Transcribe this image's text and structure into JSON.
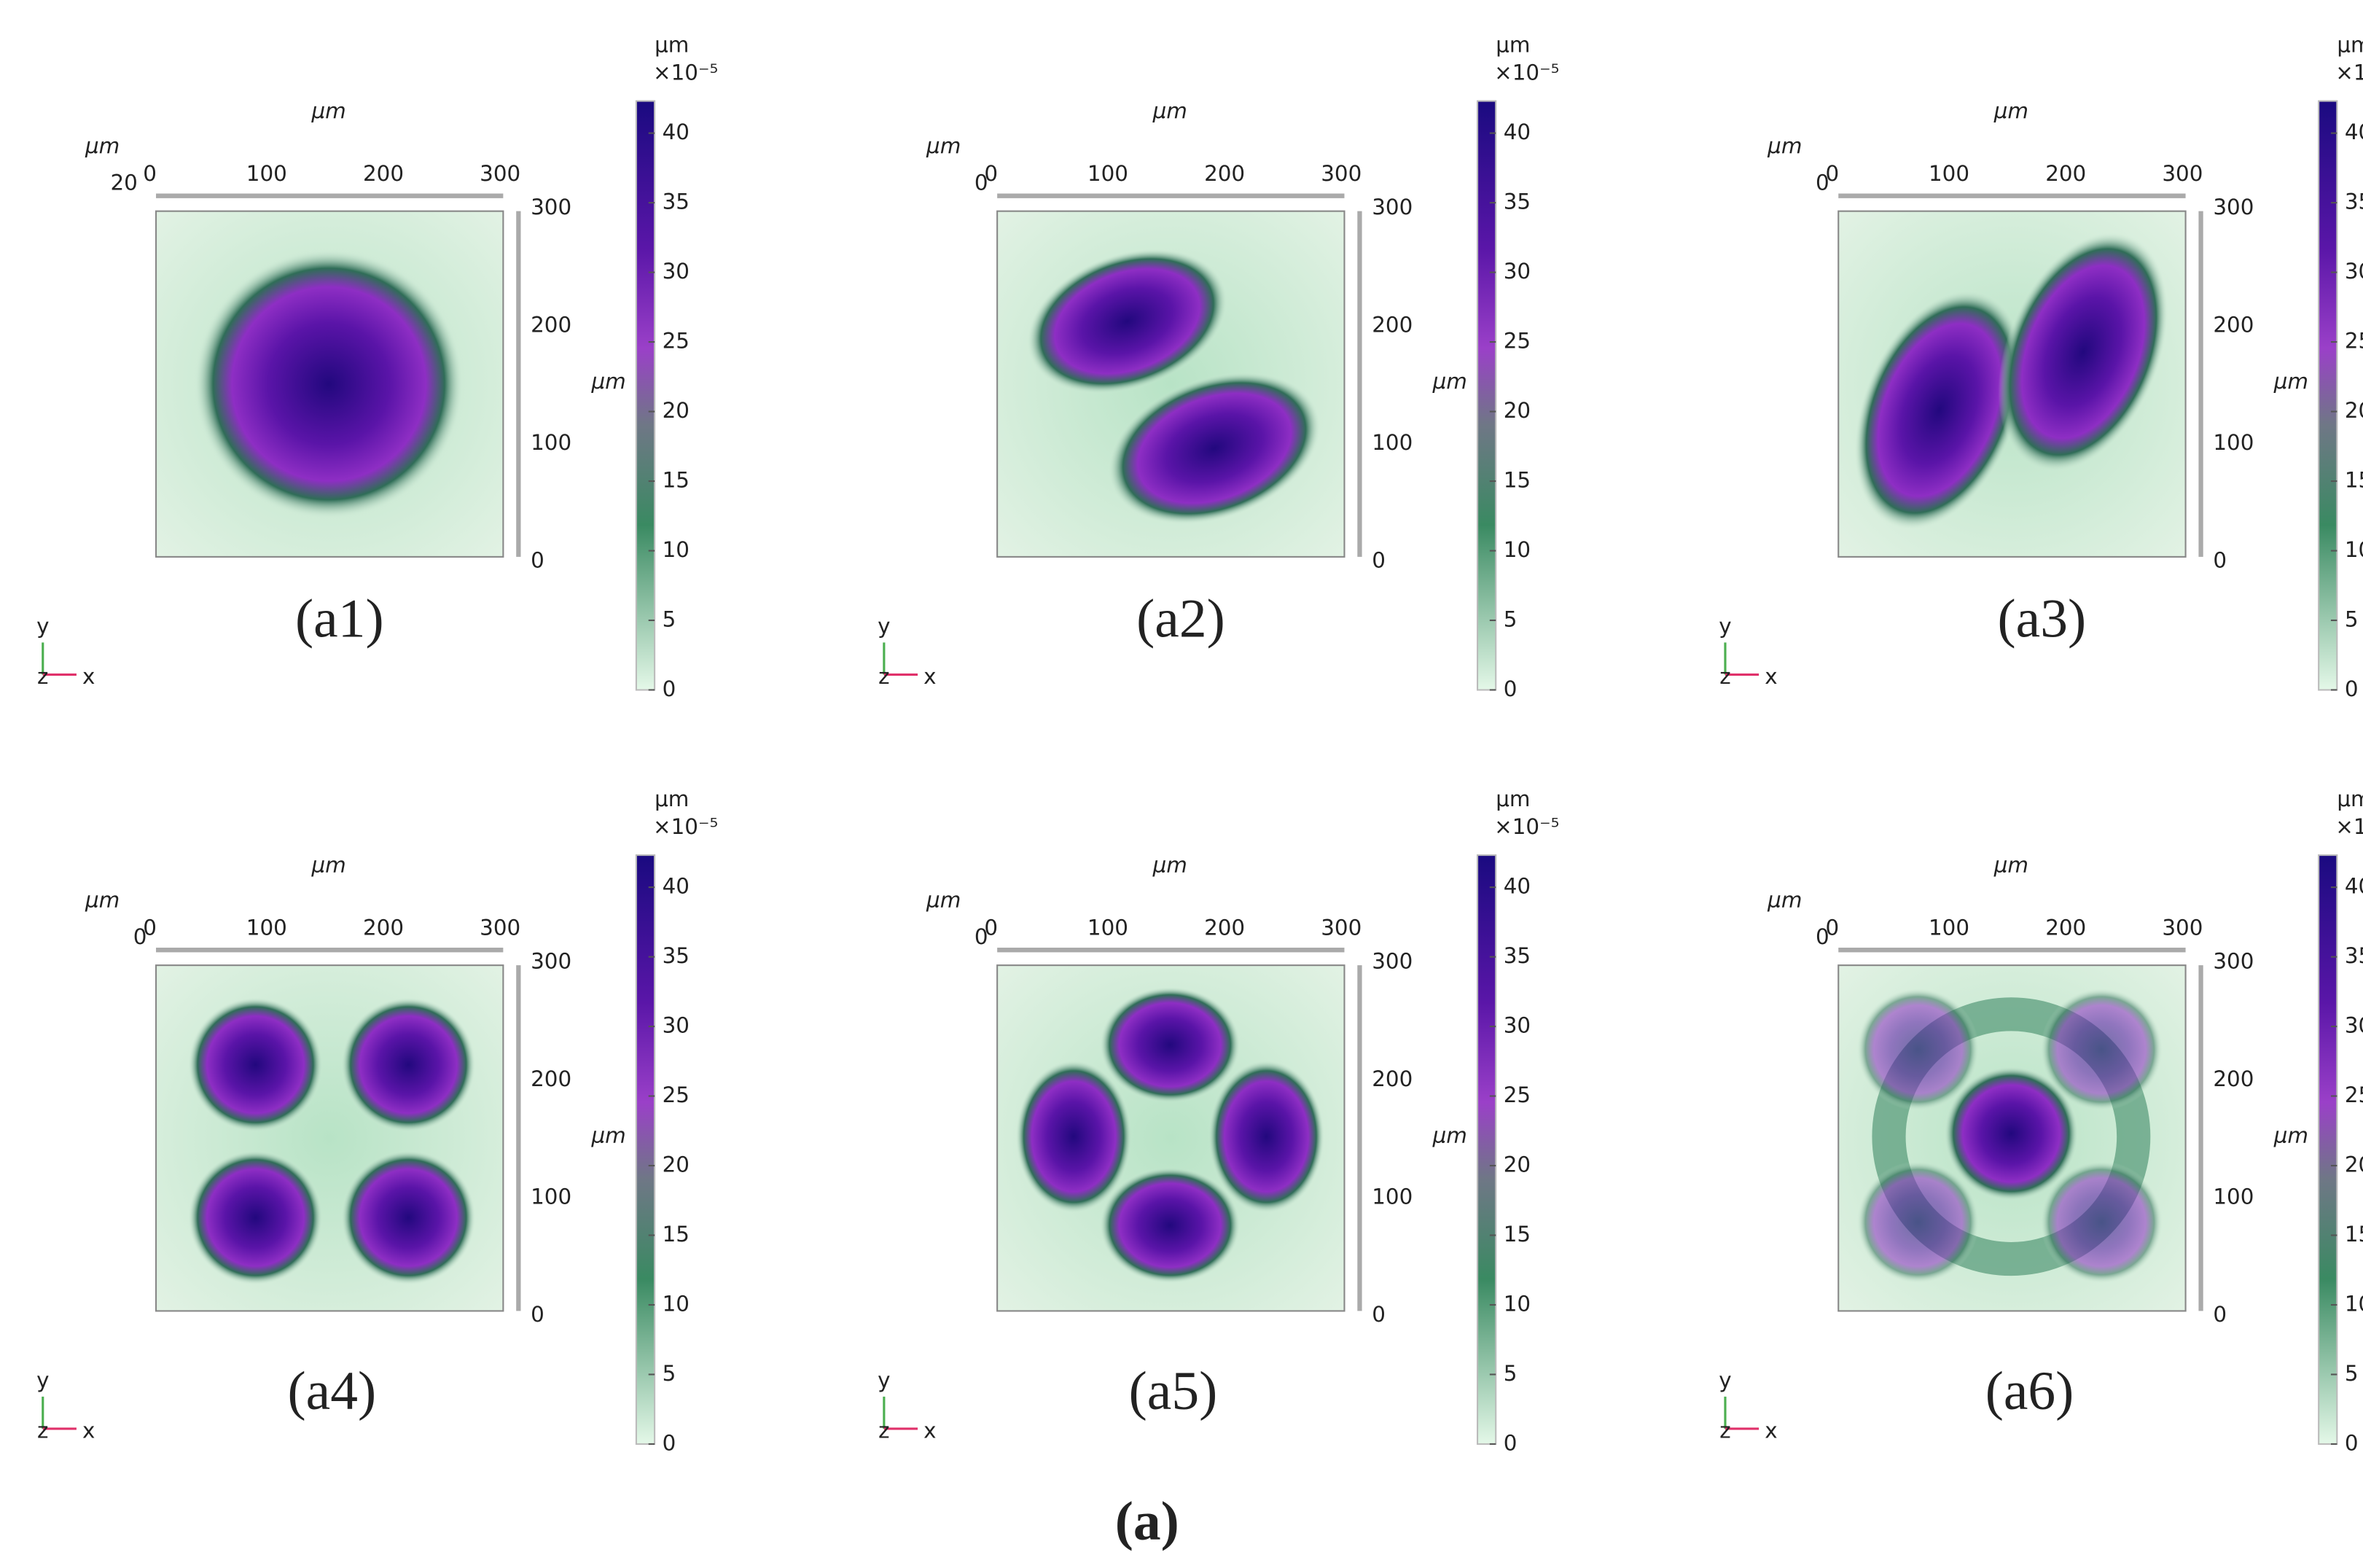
{
  "caption": "(a)",
  "axis_unit": "μm",
  "x_ticks": [
    0,
    100,
    200,
    300
  ],
  "y_ticks": [
    0,
    100,
    200,
    300
  ],
  "colorbar": {
    "unit": "μm",
    "exponent": "×10⁻⁵",
    "ticks": [
      0,
      5,
      10,
      15,
      20,
      25,
      30,
      35,
      40
    ]
  },
  "triad": {
    "x": "x",
    "y": "y",
    "z": "z"
  },
  "panels": [
    {
      "label": "(a1)",
      "corner_label": "20"
    },
    {
      "label": "(a2)",
      "corner_label": "0"
    },
    {
      "label": "(a3)",
      "corner_label": "0"
    },
    {
      "label": "(a4)",
      "corner_label": "0"
    },
    {
      "label": "(a5)",
      "corner_label": "0"
    },
    {
      "label": "(a6)",
      "corner_label": "0"
    }
  ]
}
